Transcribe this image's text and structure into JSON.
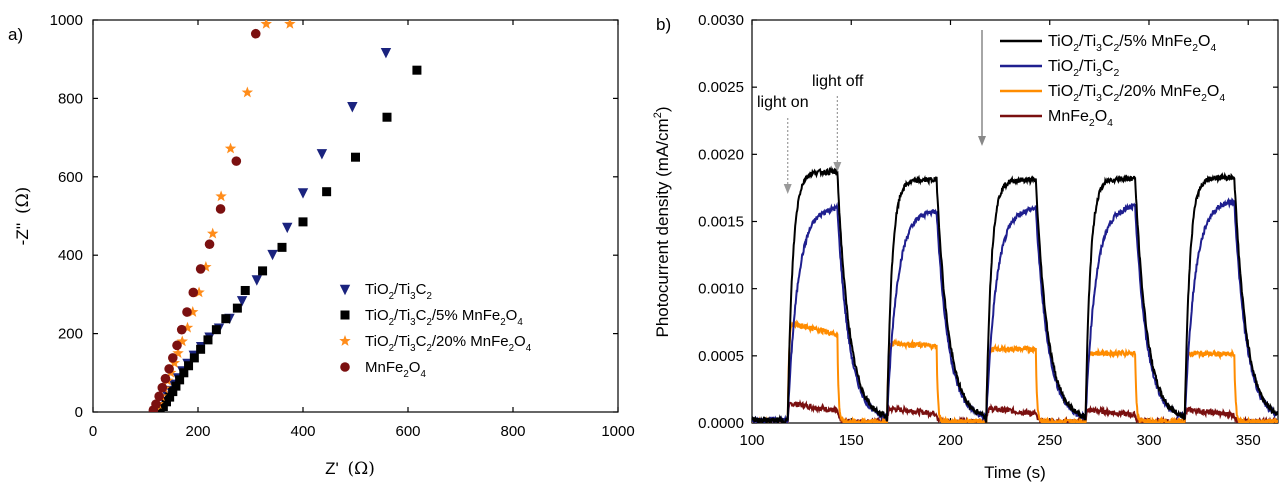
{
  "chart_data": [
    {
      "panel_label": "a)",
      "type": "scatter",
      "xlabel_main": "Z'",
      "xlabel_unit": "(Ω)",
      "ylabel_main": "-Z''",
      "ylabel_unit": "(Ω)",
      "xlim": [
        0,
        1000
      ],
      "ylim": [
        0,
        1000
      ],
      "xticks": [
        "0",
        "200",
        "400",
        "600",
        "800",
        "1000"
      ],
      "yticks": [
        "0",
        "200",
        "400",
        "600",
        "800",
        "1000"
      ],
      "legend_position": "lower-right",
      "series": [
        {
          "name": "TiO2/Ti3C2",
          "legend": [
            [
              "TiO",
              "n"
            ],
            [
              "2",
              "sub"
            ],
            [
              "/Ti",
              "n"
            ],
            [
              "3",
              "sub"
            ],
            [
              "C",
              "n"
            ],
            [
              "2",
              "sub"
            ]
          ],
          "marker": "triangle-down",
          "color": "#1a237e",
          "x": [
            125,
            130,
            136,
            142,
            148,
            154,
            162,
            170,
            180,
            192,
            206,
            222,
            240,
            260,
            284,
            312,
            342,
            370,
            400,
            436,
            494,
            558
          ],
          "y": [
            5,
            15,
            28,
            42,
            56,
            72,
            88,
            106,
            125,
            146,
            168,
            192,
            215,
            240,
            285,
            338,
            403,
            472,
            560,
            660,
            780,
            918
          ]
        },
        {
          "name": "TiO2/Ti3C2/5% MnFe2O4",
          "legend": [
            [
              "TiO",
              "n"
            ],
            [
              "2",
              "sub"
            ],
            [
              "/Ti",
              "n"
            ],
            [
              "3",
              "sub"
            ],
            [
              "C",
              "n"
            ],
            [
              "2",
              "sub"
            ],
            [
              "/5% MnFe",
              "n"
            ],
            [
              "2",
              "sub"
            ],
            [
              "O",
              "n"
            ],
            [
              "4",
              "sub"
            ]
          ],
          "marker": "square",
          "color": "#000000",
          "x": [
            128,
            134,
            140,
            146,
            152,
            158,
            165,
            173,
            182,
            193,
            205,
            219,
            235,
            253,
            275,
            290,
            323,
            360,
            400,
            445,
            500,
            560,
            617
          ],
          "y": [
            5,
            14,
            26,
            38,
            52,
            66,
            82,
            100,
            118,
            138,
            160,
            184,
            210,
            238,
            265,
            310,
            360,
            420,
            485,
            562,
            650,
            752,
            872
          ]
        },
        {
          "name": "TiO2/Ti3C2/20% MnFe2O4",
          "legend": [
            [
              "TiO",
              "n"
            ],
            [
              "2",
              "sub"
            ],
            [
              "/Ti",
              "n"
            ],
            [
              "3",
              "sub"
            ],
            [
              "C",
              "n"
            ],
            [
              "2",
              "sub"
            ],
            [
              "/20% MnFe",
              "n"
            ],
            [
              "2",
              "sub"
            ],
            [
              "O",
              "n"
            ],
            [
              "4",
              "sub"
            ]
          ],
          "marker": "star",
          "color": "#ff8c1a",
          "x": [
            118,
            124,
            130,
            136,
            142,
            148,
            155,
            162,
            170,
            180,
            190,
            202,
            215,
            228,
            244,
            262,
            294,
            330,
            375
          ],
          "y": [
            5,
            20,
            40,
            60,
            80,
            100,
            125,
            150,
            180,
            215,
            255,
            305,
            370,
            455,
            550,
            672,
            815,
            990,
            990
          ],
          "note": ""
        },
        {
          "name": "MnFe2O4",
          "legend": [
            [
              "MnFe",
              "n"
            ],
            [
              "2",
              "sub"
            ],
            [
              "O",
              "n"
            ],
            [
              "4",
              "sub"
            ]
          ],
          "marker": "circle",
          "color": "#7b1010",
          "x": [
            115,
            120,
            126,
            132,
            138,
            145,
            152,
            160,
            169,
            179,
            191,
            205,
            222,
            243,
            273,
            310
          ],
          "y": [
            5,
            20,
            40,
            62,
            85,
            110,
            138,
            170,
            210,
            255,
            305,
            365,
            428,
            518,
            640,
            965
          ]
        }
      ]
    },
    {
      "panel_label": "b)",
      "type": "line",
      "xlabel": "Time (s)",
      "ylabel_main": "Photocurrent density (mA/cm",
      "ylabel_sup": "2",
      "ylabel_end": ")",
      "xlim": [
        100,
        365
      ],
      "ylim": [
        0,
        0.003
      ],
      "xticks": [
        "100",
        "150",
        "200",
        "250",
        "300",
        "350"
      ],
      "yticks": [
        "0.0000",
        "0.0005",
        "0.0010",
        "0.0015",
        "0.0020",
        "0.0025",
        "0.0030"
      ],
      "legend_position": "top-right",
      "light_cycles": {
        "on": [
          118,
          168,
          218,
          268,
          318
        ],
        "off": [
          143,
          193,
          243,
          293,
          343
        ]
      },
      "annotations": {
        "light_on": "light on",
        "light_off": "light off"
      },
      "series": [
        {
          "name": "TiO2/Ti3C2/5% MnFe2O4",
          "legend": [
            [
              "TiO",
              "n"
            ],
            [
              "2",
              "sub"
            ],
            [
              "/Ti",
              "n"
            ],
            [
              "3",
              "sub"
            ],
            [
              "C",
              "n"
            ],
            [
              "2",
              "sub"
            ],
            [
              "/5% MnFe",
              "n"
            ],
            [
              "2",
              "sub"
            ],
            [
              "O",
              "n"
            ],
            [
              "4",
              "sub"
            ]
          ],
          "color": "#000000",
          "plateau": [
            0.00187,
            0.00181,
            0.00181,
            0.00182,
            0.00183
          ],
          "dark": 2e-05,
          "rise_tau": 2.5,
          "decay_tau": 6
        },
        {
          "name": "TiO2/Ti3C2",
          "legend": [
            [
              "TiO",
              "n"
            ],
            [
              "2",
              "sub"
            ],
            [
              "/Ti",
              "n"
            ],
            [
              "3",
              "sub"
            ],
            [
              "C",
              "n"
            ],
            [
              "2",
              "sub"
            ]
          ],
          "color": "#1f1f8f",
          "plateau": [
            0.00161,
            0.00159,
            0.00161,
            0.00162,
            0.00166
          ],
          "dark": 2e-05,
          "rise_tau": 5,
          "decay_tau": 6
        },
        {
          "name": "TiO2/Ti3C2/20% MnFe2O4",
          "legend": [
            [
              "TiO",
              "n"
            ],
            [
              "2",
              "sub"
            ],
            [
              "/Ti",
              "n"
            ],
            [
              "3",
              "sub"
            ],
            [
              "C",
              "n"
            ],
            [
              "2",
              "sub"
            ],
            [
              "/20% MnFe",
              "n"
            ],
            [
              "2",
              "sub"
            ],
            [
              "O",
              "n"
            ],
            [
              "4",
              "sub"
            ]
          ],
          "color": "#ff8c00",
          "plateau": [
            0.00075,
            0.0006,
            0.00055,
            0.00052,
            0.00052
          ],
          "plateau_end": [
            0.00066,
            0.00057,
            0.00055,
            0.00052,
            0.00051
          ],
          "dark": 1e-05,
          "rise_tau": 0.6,
          "decay_tau": 0.6
        },
        {
          "name": "MnFe2O4",
          "legend": [
            [
              "MnFe",
              "n"
            ],
            [
              "2",
              "sub"
            ],
            [
              "O",
              "n"
            ],
            [
              "4",
              "sub"
            ]
          ],
          "color": "#7a1010",
          "plateau": [
            0.00015,
            0.00011,
            0.00011,
            0.0001,
            0.0001
          ],
          "plateau_end": [
            9e-05,
            7e-05,
            7e-05,
            6e-05,
            6e-05
          ],
          "dark": 1e-05,
          "rise_tau": 0.5,
          "decay_tau": 0.8
        }
      ]
    }
  ]
}
